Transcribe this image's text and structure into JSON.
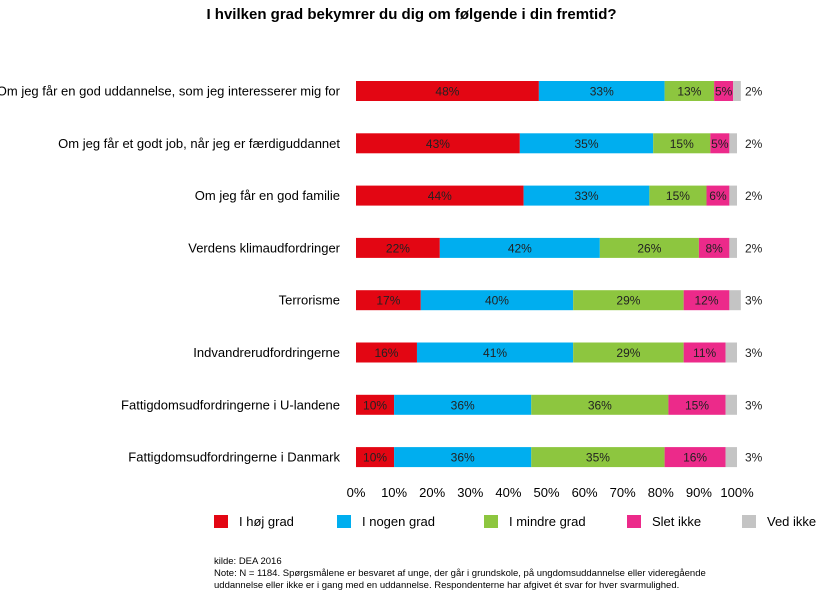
{
  "chart_data": {
    "type": "bar",
    "orientation": "horizontal",
    "stacked": true,
    "title": "I hvilken grad bekymrer du dig om følgende i din fremtid?",
    "categories": [
      "Om jeg får en god uddannelse, som jeg interesserer mig for",
      "Om jeg får et godt job, når jeg er færdiguddannet",
      "Om jeg får en god familie",
      "Verdens klimaudfordringer",
      "Terrorisme",
      "Indvandrerudfordringerne",
      "Fattigdomsudfordringerne i U-landene",
      "Fattigdomsudfordringerne i Danmark"
    ],
    "series": [
      {
        "name": "I høj grad",
        "color": "#e30613",
        "values": [
          48,
          43,
          44,
          22,
          17,
          16,
          10,
          10
        ]
      },
      {
        "name": "I nogen grad",
        "color": "#00aeef",
        "values": [
          33,
          35,
          33,
          42,
          40,
          41,
          36,
          36
        ]
      },
      {
        "name": "I mindre grad",
        "color": "#8dc63f",
        "values": [
          13,
          15,
          15,
          26,
          29,
          29,
          36,
          35
        ]
      },
      {
        "name": "Slet ikke",
        "color": "#ec2a8a",
        "values": [
          5,
          5,
          6,
          8,
          12,
          11,
          15,
          16
        ]
      },
      {
        "name": "Ved ikke",
        "color": "#c4c4c4",
        "values": [
          2,
          2,
          2,
          2,
          3,
          3,
          3,
          3
        ]
      }
    ],
    "xticks": [
      "0%",
      "10%",
      "20%",
      "30%",
      "40%",
      "50%",
      "60%",
      "70%",
      "80%",
      "90%",
      "100%"
    ],
    "xlim": [
      0,
      100
    ],
    "legend_position": "bottom",
    "grid": false
  },
  "footnote": {
    "source": "kilde: DEA 2016",
    "note_line1": "Note: N = 1184. Spørgsmålene er besvaret af unge, der går i grundskole, på ungdomsuddannelse eller videregående",
    "note_line2": "uddannelse eller ikke er i gang med en uddannelse. Respondenterne har afgivet ét svar for hver svarmulighed."
  }
}
